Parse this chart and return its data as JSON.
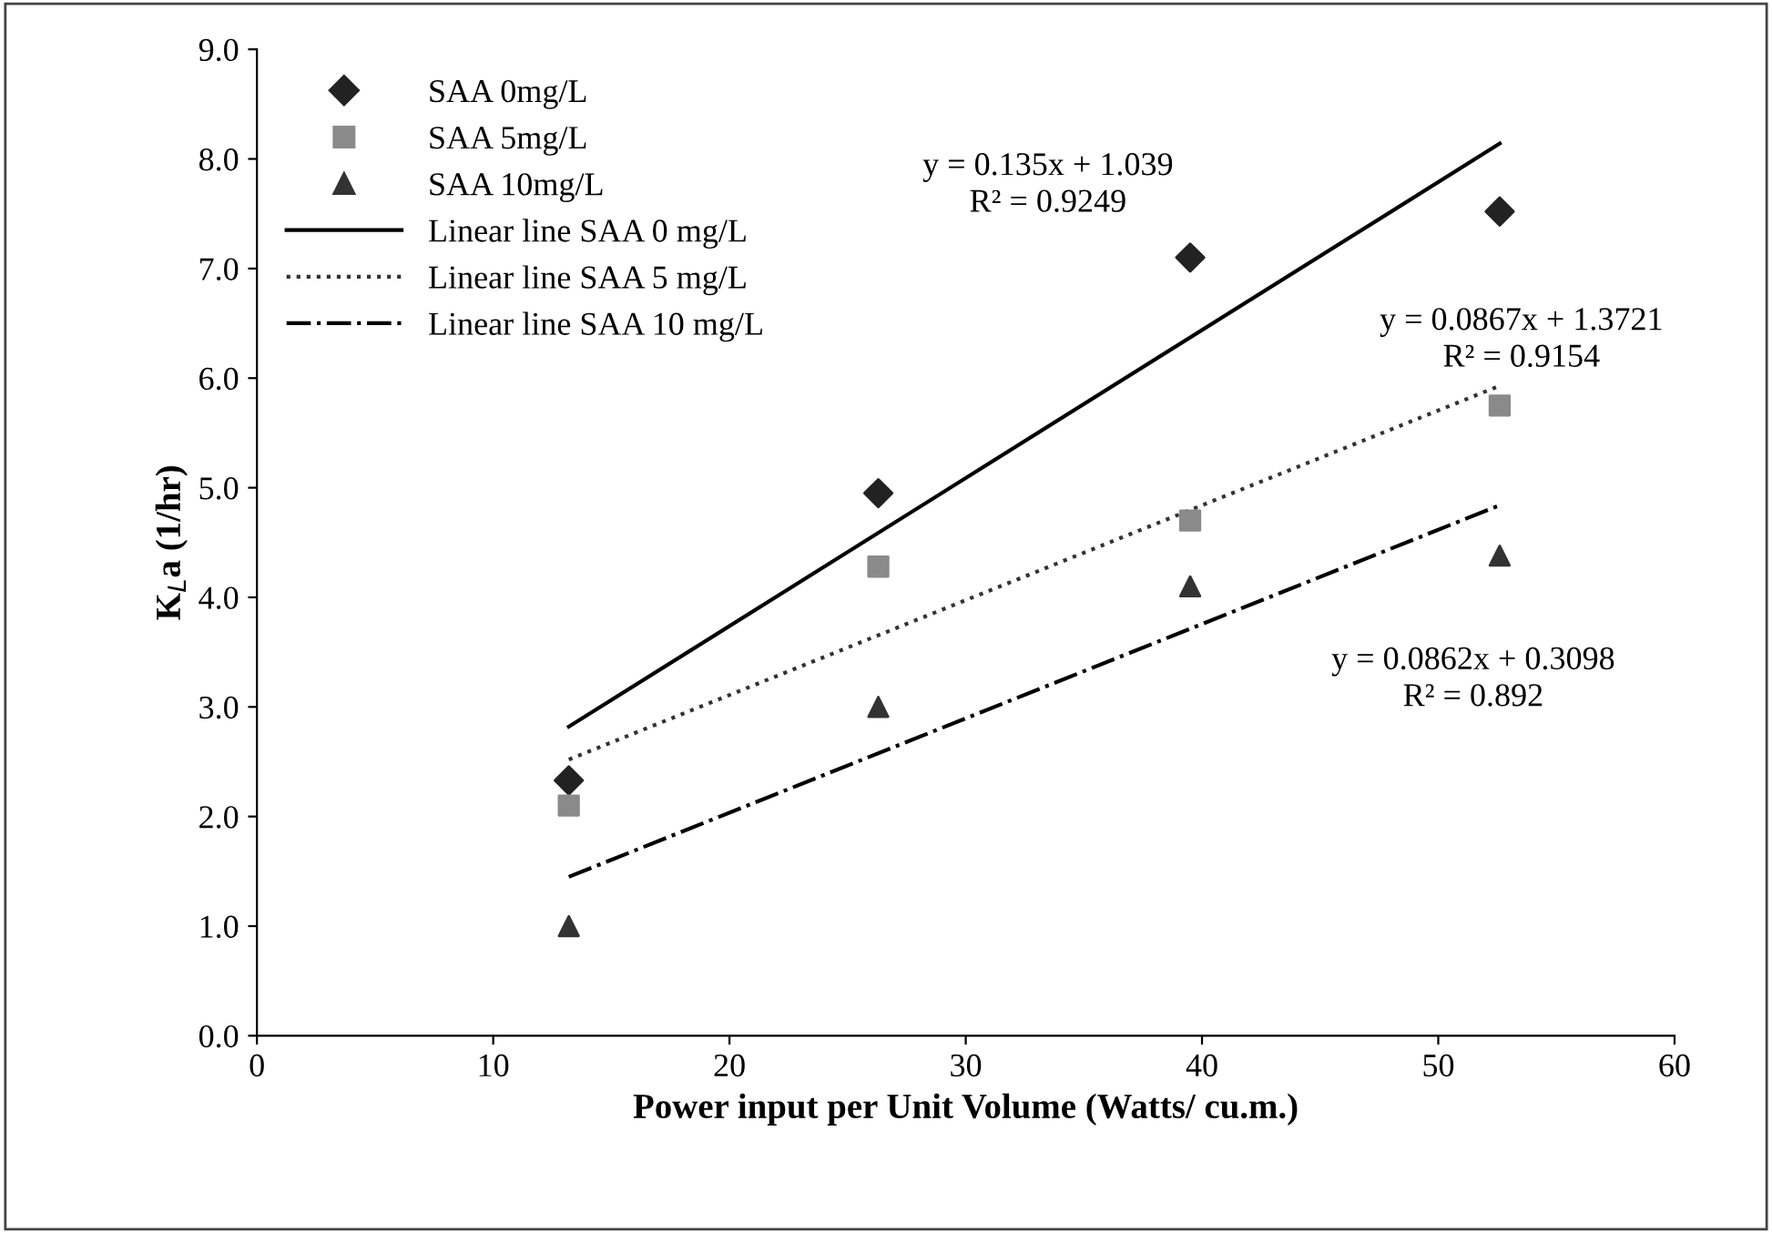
{
  "chart_data": {
    "type": "scatter",
    "xlabel": "Power input per Unit Volume (Watts/ cu.m.)",
    "ylabel": "K$_{L}$a (1/hr)",
    "series": [
      {
        "name": "SAA 0mg/L",
        "marker": "diamond",
        "color": "#222222",
        "x": [
          13.2,
          26.3,
          39.5,
          52.6
        ],
        "values": [
          2.33,
          4.95,
          7.1,
          7.52
        ]
      },
      {
        "name": "SAA 5mg/L",
        "marker": "square",
        "color": "#8a8a8a",
        "x": [
          13.2,
          26.3,
          39.5,
          52.6
        ],
        "values": [
          2.1,
          4.28,
          4.7,
          5.75
        ]
      },
      {
        "name": "SAA 10mg/L",
        "marker": "triangle",
        "color": "#333333",
        "x": [
          13.2,
          26.3,
          39.5,
          52.6
        ],
        "values": [
          1.0,
          3.0,
          4.1,
          4.38
        ]
      },
      {
        "name": "Linear line SAA 0 mg/L",
        "type": "line",
        "line_style": "solid",
        "color": "#000000",
        "x": [
          13.2,
          52.6
        ],
        "values": [
          2.82,
          8.14
        ]
      },
      {
        "name": "Linear line SAA 5 mg/L",
        "type": "line",
        "line_style": "dotted",
        "color": "#333333",
        "x": [
          13.2,
          52.6
        ],
        "values": [
          2.52,
          5.93
        ]
      },
      {
        "name": "Linear line SAA 10 mg/L",
        "type": "line",
        "line_style": "dashdot",
        "color": "#000000",
        "x": [
          13.2,
          52.6
        ],
        "values": [
          1.45,
          4.84
        ]
      }
    ],
    "xlim": [
      0,
      60
    ],
    "xticks": [
      0,
      10,
      20,
      30,
      40,
      50,
      60
    ],
    "ylim": [
      0,
      9
    ],
    "yticks": [
      {
        "value": 0,
        "label": "0.0"
      },
      {
        "value": 1,
        "label": "1.0"
      },
      {
        "value": 2,
        "label": "2.0"
      },
      {
        "value": 3,
        "label": "3.0"
      },
      {
        "value": 4,
        "label": "4.0"
      },
      {
        "value": 5,
        "label": "5.0"
      },
      {
        "value": 6,
        "label": "6.0"
      },
      {
        "value": 7,
        "label": "7.0"
      },
      {
        "value": 8,
        "label": "8.0"
      },
      {
        "value": 9,
        "label": "9.0"
      }
    ],
    "grid": false,
    "legend": "top left",
    "annotations": [
      "y = 0.135x + 1.039\nR² = 0.9249",
      "y = 0.0867x + 1.3721\nR² = 0.9154",
      "y = 0.0862x + 0.3098\nR² = 0.892"
    ]
  }
}
